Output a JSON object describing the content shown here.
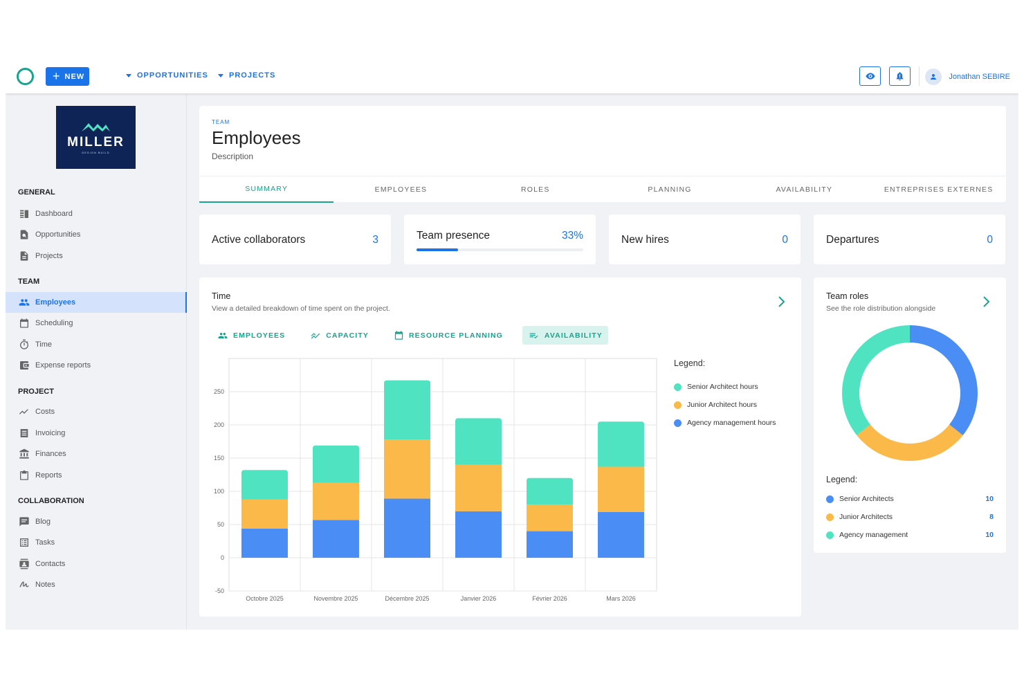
{
  "topbar": {
    "new_label": "NEW",
    "menus": [
      "OPPORTUNITIES",
      "PROJECTS"
    ],
    "user_name": "Jonathan SEBIRE"
  },
  "brand": {
    "name": "MILLER",
    "tagline": "DESIGN BUILD"
  },
  "sidebar": {
    "sections": [
      {
        "title": "GENERAL",
        "items": [
          {
            "label": "Dashboard",
            "icon": "dashboard-icon"
          },
          {
            "label": "Opportunities",
            "icon": "opportunities-icon"
          },
          {
            "label": "Projects",
            "icon": "document-icon"
          }
        ]
      },
      {
        "title": "TEAM",
        "items": [
          {
            "label": "Employees",
            "icon": "people-icon",
            "active": true
          },
          {
            "label": "Scheduling",
            "icon": "calendar-icon"
          },
          {
            "label": "Time",
            "icon": "timer-icon"
          },
          {
            "label": "Expense reports",
            "icon": "wallet-icon"
          }
        ]
      },
      {
        "title": "PROJECT",
        "items": [
          {
            "label": "Costs",
            "icon": "trend-icon"
          },
          {
            "label": "Invoicing",
            "icon": "invoice-icon"
          },
          {
            "label": "Finances",
            "icon": "bank-icon"
          },
          {
            "label": "Reports",
            "icon": "clipboard-icon"
          }
        ]
      },
      {
        "title": "COLLABORATION",
        "items": [
          {
            "label": "Blog",
            "icon": "chat-icon"
          },
          {
            "label": "Tasks",
            "icon": "tasks-icon"
          },
          {
            "label": "Contacts",
            "icon": "contacts-icon"
          },
          {
            "label": "Notes",
            "icon": "signature-icon"
          }
        ]
      }
    ]
  },
  "page": {
    "kicker": "TEAM",
    "title": "Employees",
    "description": "Description",
    "tabs": [
      "SUMMARY",
      "EMPLOYEES",
      "ROLES",
      "PLANNING",
      "AVAILABILITY",
      "ENTREPRISES EXTERNES"
    ],
    "active_tab": "SUMMARY"
  },
  "kpis": [
    {
      "label": "Active collaborators",
      "value": "3"
    },
    {
      "label": "Team presence",
      "value": "33%",
      "progress": 0.25
    },
    {
      "label": "New hires",
      "value": "0"
    },
    {
      "label": "Departures",
      "value": "0"
    }
  ],
  "time_card": {
    "title": "Time",
    "subtitle": "View a detailed breakdown of time spent on the project.",
    "subtabs": [
      {
        "label": "EMPLOYEES",
        "icon": "people-icon"
      },
      {
        "label": "CAPACITY",
        "icon": "trend-icon"
      },
      {
        "label": "RESOURCE PLANNING",
        "icon": "calendar-icon"
      },
      {
        "label": "AVAILABILITY",
        "icon": "list-check-icon",
        "active": true
      }
    ],
    "legend_title": "Legend:"
  },
  "roles_card": {
    "title": "Team roles",
    "subtitle": "See the role distribution alongside",
    "legend_title": "Legend:"
  },
  "colors": {
    "accent": "#1a73e8",
    "teal": "#19a28e",
    "senior": "#50e3c2",
    "junior": "#fbb949",
    "agency": "#4a8ef5"
  },
  "chart_data": [
    {
      "type": "bar",
      "stacked": true,
      "categories": [
        "Octobre 2025",
        "Novembre 2025",
        "Décembre 2025",
        "Janvier 2026",
        "Février 2026",
        "Mars 2026"
      ],
      "series": [
        {
          "name": "Agency management hours",
          "color": "#4a8ef5",
          "values": [
            44,
            57,
            89,
            70,
            40,
            69
          ]
        },
        {
          "name": "Junior Architect hours",
          "color": "#fbb949",
          "values": [
            44,
            56,
            89,
            70,
            40,
            68
          ]
        },
        {
          "name": "Senior Architect hours",
          "color": "#50e3c2",
          "values": [
            44,
            56,
            89,
            70,
            40,
            68
          ]
        }
      ],
      "ylim": [
        -50,
        300
      ],
      "yticks": [
        -50,
        0,
        50,
        100,
        150,
        200,
        250
      ],
      "grid": true,
      "legend": "right"
    },
    {
      "type": "pie",
      "donut": true,
      "series": [
        {
          "name": "Senior Architects",
          "value": 10,
          "color": "#4a8ef5"
        },
        {
          "name": "Junior Architects",
          "value": 8,
          "color": "#fbb949"
        },
        {
          "name": "Agency management",
          "value": 10,
          "color": "#50e3c2"
        }
      ],
      "legend": "bottom"
    }
  ]
}
